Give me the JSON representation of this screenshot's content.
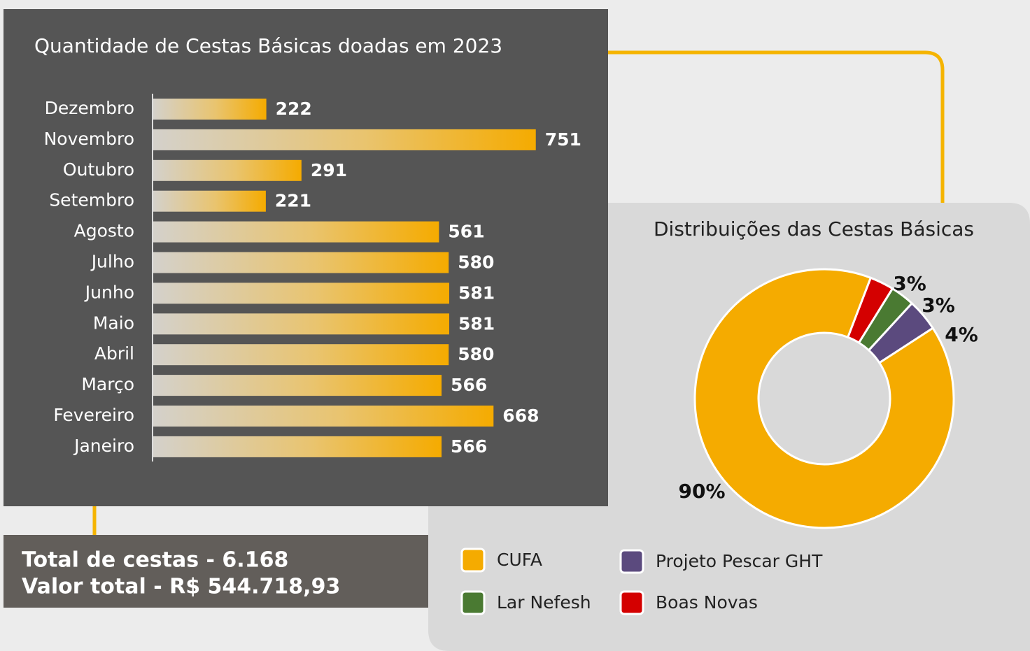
{
  "chart_data": [
    {
      "type": "hbar",
      "title": "Quantidade de Cestas Básicas doadas em 2023",
      "categories": [
        "Dezembro",
        "Novembro",
        "Outubro",
        "Setembro",
        "Agosto",
        "Julho",
        "Junho",
        "Maio",
        "Abril",
        "Março",
        "Fevereiro",
        "Janeiro"
      ],
      "values": [
        222,
        751,
        291,
        221,
        561,
        580,
        581,
        581,
        580,
        566,
        668,
        566
      ],
      "color": "#f5ab00"
    },
    {
      "type": "donut",
      "title": "Distribuições das Cestas Básicas",
      "categories": [
        "Boas Novas",
        "Lar Nefesh",
        "Projeto Pescar GHT",
        "CUFA"
      ],
      "values": [
        3,
        3,
        4,
        90
      ],
      "value_labels": [
        "3%",
        "3%",
        "4%",
        "90%"
      ],
      "colors": [
        "#d40000",
        "#4a7a32",
        "#5b4a7e",
        "#f5ab00"
      ]
    }
  ],
  "summary": [
    "Total de cestas - 6.168",
    "Valor total - R$ 544.718,93"
  ]
}
